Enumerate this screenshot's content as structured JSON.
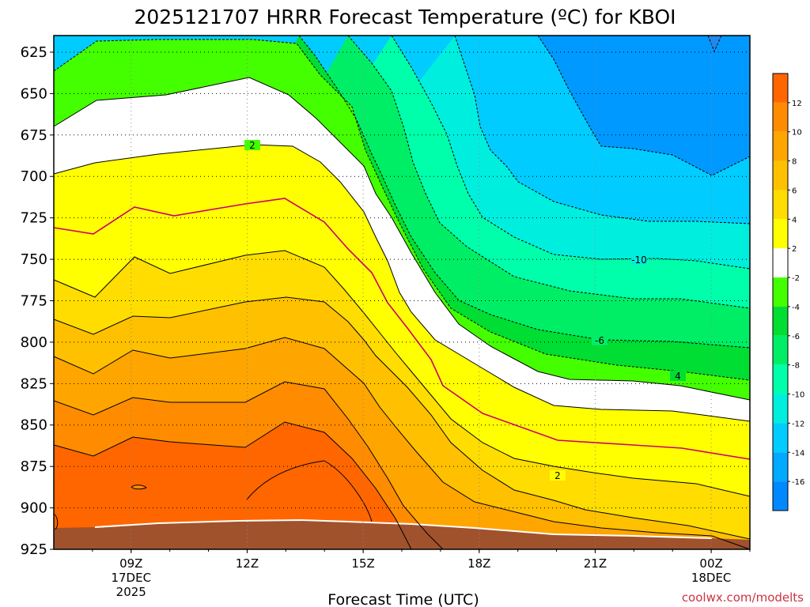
{
  "chart_data": {
    "type": "heatmap",
    "title": "2025121707 HRRR Forecast Temperature (ºC) for KBOI",
    "xlabel": "Forecast Time (UTC)",
    "ylabel": "",
    "y_axis": {
      "inverted": true,
      "ylim": [
        925,
        615
      ],
      "ticks": [
        "625",
        "650",
        "675",
        "700",
        "725",
        "750",
        "775",
        "800",
        "825",
        "850",
        "875",
        "900",
        "925"
      ]
    },
    "x_axis": {
      "ticks": [
        {
          "hour": 9,
          "label": "09Z",
          "sub1": "17DEC",
          "sub2": "2025"
        },
        {
          "hour": 12,
          "label": "12Z",
          "sub1": "",
          "sub2": ""
        },
        {
          "hour": 15,
          "label": "15Z",
          "sub1": "",
          "sub2": ""
        },
        {
          "hour": 18,
          "label": "18Z",
          "sub1": "",
          "sub2": ""
        },
        {
          "hour": 21,
          "label": "21Z",
          "sub1": "",
          "sub2": ""
        },
        {
          "hour": 24,
          "label": "00Z",
          "sub1": "18DEC",
          "sub2": ""
        }
      ],
      "xlim": [
        7,
        25
      ]
    },
    "grid": true,
    "contour_labels": [
      "2",
      "2",
      "-10",
      "-6",
      "4"
    ],
    "colorbar": {
      "position": "right",
      "labels": [
        "12",
        "10",
        "8",
        "6",
        "4",
        "2",
        "-2",
        "-4",
        "-6",
        "-8",
        "-10",
        "-12",
        "-14",
        "-16"
      ],
      "colors": [
        "#ff6600",
        "#ff8c00",
        "#ffa500",
        "#ffc000",
        "#ffdd00",
        "#ffff00",
        "#ffffff",
        "#44ff00",
        "#00dd33",
        "#00ee66",
        "#00ffaa",
        "#00eedd",
        "#00ccff",
        "#00aaff",
        "#0088ff"
      ]
    },
    "layer_colors": {
      "m16": "#0088ff",
      "m14": "#00aaff",
      "m12": "#00ccff",
      "m10": "#00eedd",
      "m8": "#00ffaa",
      "m6": "#00ee66",
      "m4": "#00dd33",
      "m2": "#44ff00",
      "p2": "#ffffff",
      "p4": "#ffff00",
      "p6": "#ffdd00",
      "p8": "#ffc000",
      "p10": "#ffa500",
      "p12": "#ff8c00",
      "p14": "#ff6600",
      "ground": "#a0522d",
      "zero": "#cc0066"
    }
  },
  "credit": "coolwx.com/modelts"
}
